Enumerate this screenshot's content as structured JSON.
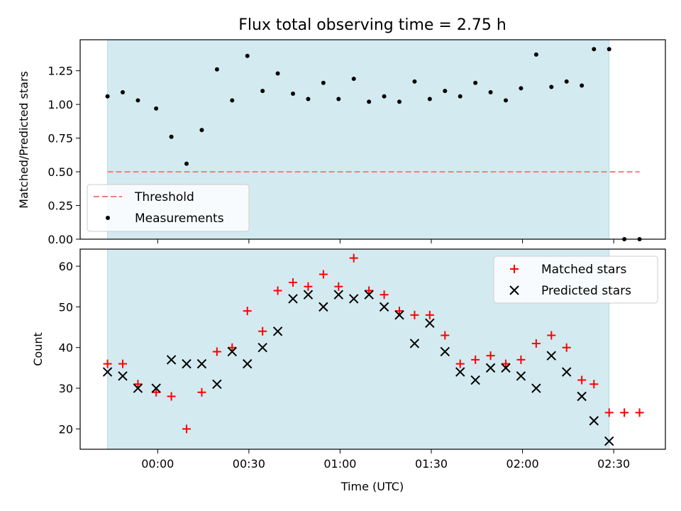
{
  "figure_title": "Flux total observing time = 2.75 h",
  "colors": {
    "shade": "#d3eaf0",
    "shade_edge": "#b9dbe6",
    "threshold": "#f08080",
    "measurement": "#000000",
    "matched": "#ff0000",
    "predicted": "#000000"
  },
  "chart_data": [
    {
      "type": "scatter",
      "ylabel": "Matched/Predicted stars",
      "ylim": [
        0,
        1.48
      ],
      "xlim": [
        -25.5,
        167
      ],
      "yticks": [
        0,
        0.25,
        0.5,
        0.75,
        1.0,
        1.25
      ],
      "ytick_labels": [
        "0.00",
        "0.25",
        "0.50",
        "0.75",
        "1.00",
        "1.25"
      ],
      "xticks": [
        0,
        30,
        60,
        90,
        120,
        150
      ],
      "xtick_labels": [
        "",
        "",
        "",
        "",
        "",
        ""
      ],
      "shaded_x_range": [
        -16.5,
        148.5
      ],
      "grid": false,
      "legend_position": "lower-left",
      "threshold": {
        "name": "Threshold",
        "style": "dashed",
        "x": [
          -16.5,
          158.5
        ],
        "y": 0.5
      },
      "series": [
        {
          "name": "Measurements",
          "marker": "dot",
          "x": [
            -16.5,
            -11.5,
            -6.5,
            -0.5,
            4.5,
            9.5,
            14.5,
            19.5,
            24.5,
            29.5,
            34.5,
            39.5,
            44.5,
            49.5,
            54.5,
            59.5,
            64.5,
            69.5,
            74.5,
            79.5,
            84.5,
            89.5,
            94.5,
            99.5,
            104.5,
            109.5,
            114.5,
            119.5,
            124.5,
            129.5,
            134.5,
            139.5,
            143.5,
            148.5,
            153.5,
            158.5
          ],
          "y": [
            1.06,
            1.09,
            1.03,
            0.97,
            0.76,
            0.56,
            0.81,
            1.26,
            1.03,
            1.36,
            1.1,
            1.23,
            1.08,
            1.04,
            1.16,
            1.04,
            1.19,
            1.02,
            1.06,
            1.02,
            1.17,
            1.04,
            1.1,
            1.06,
            1.16,
            1.09,
            1.03,
            1.12,
            1.37,
            1.13,
            1.17,
            1.14,
            1.41,
            1.41,
            0.0,
            0.0
          ]
        }
      ]
    },
    {
      "type": "scatter",
      "xlabel": "Time (UTC)",
      "ylabel": "Count",
      "ylim": [
        15,
        64.2
      ],
      "xlim": [
        -25.5,
        167
      ],
      "yticks": [
        20,
        30,
        40,
        50,
        60
      ],
      "ytick_labels": [
        "20",
        "30",
        "40",
        "50",
        "60"
      ],
      "xticks": [
        0,
        30,
        60,
        90,
        120,
        150
      ],
      "xtick_labels": [
        "00:00",
        "00:30",
        "01:00",
        "01:30",
        "02:00",
        "02:30"
      ],
      "shaded_x_range": [
        -16.5,
        148.5
      ],
      "grid": false,
      "legend_position": "top-right",
      "series": [
        {
          "name": "Matched stars",
          "marker": "plus",
          "x": [
            -16.5,
            -11.5,
            -6.5,
            -0.5,
            4.5,
            9.5,
            14.5,
            19.5,
            24.5,
            29.5,
            34.5,
            39.5,
            44.5,
            49.5,
            54.5,
            59.5,
            64.5,
            69.5,
            74.5,
            79.5,
            84.5,
            89.5,
            94.5,
            99.5,
            104.5,
            109.5,
            114.5,
            119.5,
            124.5,
            129.5,
            134.5,
            139.5,
            143.5,
            148.5,
            153.5,
            158.5
          ],
          "y": [
            36,
            36,
            31,
            29,
            28,
            20,
            29,
            39,
            40,
            49,
            44,
            54,
            56,
            55,
            58,
            55,
            62,
            54,
            53,
            49,
            48,
            48,
            43,
            36,
            37,
            38,
            36,
            37,
            41,
            43,
            40,
            32,
            31,
            24,
            24,
            24
          ]
        },
        {
          "name": "Predicted stars",
          "marker": "x",
          "x": [
            -16.5,
            -11.5,
            -6.5,
            -0.5,
            4.5,
            9.5,
            14.5,
            19.5,
            24.5,
            29.5,
            34.5,
            39.5,
            44.5,
            49.5,
            54.5,
            59.5,
            64.5,
            69.5,
            74.5,
            79.5,
            84.5,
            89.5,
            94.5,
            99.5,
            104.5,
            109.5,
            114.5,
            119.5,
            124.5,
            129.5,
            134.5,
            139.5,
            143.5,
            148.5
          ],
          "y": [
            34,
            33,
            30,
            30,
            37,
            36,
            36,
            31,
            39,
            36,
            40,
            44,
            52,
            53,
            50,
            53,
            52,
            53,
            50,
            48,
            41,
            46,
            39,
            34,
            32,
            35,
            35,
            33,
            30,
            38,
            34,
            28,
            22,
            17
          ]
        }
      ]
    }
  ]
}
